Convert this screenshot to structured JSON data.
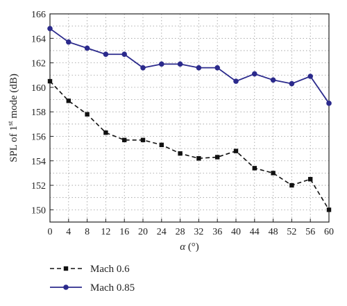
{
  "chart_data": {
    "type": "line",
    "title": "",
    "xlabel_symbol": "α",
    "xlabel_unit": "(°)",
    "ylabel_pre": "SPL of 1",
    "ylabel_sup": "st",
    "ylabel_post": " mode (dB)",
    "x": [
      0,
      4,
      8,
      12,
      16,
      20,
      24,
      28,
      32,
      36,
      40,
      44,
      48,
      52,
      56,
      60
    ],
    "xlim": [
      0,
      60
    ],
    "ylim": [
      149,
      166
    ],
    "xticks": [
      0,
      4,
      8,
      12,
      16,
      20,
      24,
      28,
      32,
      36,
      40,
      44,
      48,
      52,
      56,
      60
    ],
    "yticks": [
      150,
      152,
      154,
      156,
      158,
      160,
      162,
      164,
      166
    ],
    "grid": true,
    "legend_position": "bottom-left, outside plot",
    "series": [
      {
        "name": "Mach 0.6",
        "style": "dashed",
        "marker": "square",
        "color": "#111111",
        "values": [
          160.5,
          158.9,
          157.8,
          156.3,
          155.7,
          155.7,
          155.3,
          154.6,
          154.2,
          154.3,
          154.8,
          153.4,
          153.0,
          152.0,
          152.5,
          150.0
        ]
      },
      {
        "name": "Mach 0.85",
        "style": "solid",
        "marker": "circle",
        "color": "#2b2a8c",
        "values": [
          164.8,
          163.7,
          163.2,
          162.7,
          162.7,
          161.6,
          161.9,
          161.9,
          161.6,
          161.6,
          160.5,
          161.1,
          160.6,
          160.3,
          160.9,
          158.7
        ]
      }
    ]
  }
}
